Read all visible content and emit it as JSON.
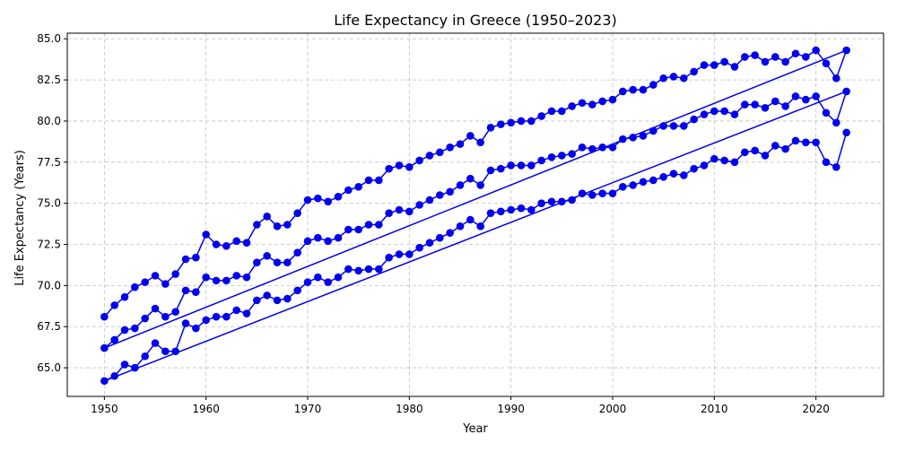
{
  "chart_data": {
    "type": "line",
    "title": "Life Expectancy in Greece (1950–2023)",
    "xlabel": "Year",
    "ylabel": "Life Expectancy (Years)",
    "xlim": [
      1946.35,
      2026.65
    ],
    "ylim": [
      63.26,
      85.34
    ],
    "x_ticks": [
      1950,
      1960,
      1970,
      1980,
      1990,
      2000,
      2010,
      2020
    ],
    "y_ticks": [
      65.0,
      67.5,
      70.0,
      72.5,
      75.0,
      77.5,
      80.0,
      82.5,
      85.0
    ],
    "grid": true,
    "grid_style": "dashed",
    "legend": "none",
    "color": "#0000ee",
    "x": [
      1950,
      1951,
      1952,
      1953,
      1954,
      1955,
      1956,
      1957,
      1958,
      1959,
      1960,
      1961,
      1962,
      1963,
      1964,
      1965,
      1966,
      1967,
      1968,
      1969,
      1970,
      1971,
      1972,
      1973,
      1974,
      1975,
      1976,
      1977,
      1978,
      1979,
      1980,
      1981,
      1982,
      1983,
      1984,
      1985,
      1986,
      1987,
      1988,
      1989,
      1990,
      1991,
      1992,
      1993,
      1994,
      1995,
      1996,
      1997,
      1998,
      1999,
      2000,
      2001,
      2002,
      2003,
      2004,
      2005,
      2006,
      2007,
      2008,
      2009,
      2010,
      2011,
      2012,
      2013,
      2014,
      2015,
      2016,
      2017,
      2018,
      2019,
      2020,
      2021,
      2022,
      2023
    ],
    "series": [
      {
        "values": [
          68.1,
          68.8,
          69.3,
          69.9,
          70.2,
          70.6,
          70.1,
          70.7,
          71.6,
          71.7,
          73.1,
          72.5,
          72.4,
          72.7,
          72.6,
          73.7,
          74.2,
          73.6,
          73.7,
          74.4,
          75.2,
          75.3,
          75.1,
          75.4,
          75.8,
          76.0,
          76.4,
          76.4,
          77.1,
          77.3,
          77.2,
          77.6,
          77.9,
          78.1,
          78.4,
          78.6,
          79.1,
          78.7,
          79.6,
          79.8,
          79.9,
          80.0,
          80.0,
          80.3,
          80.6,
          80.6,
          80.9,
          81.1,
          81.0,
          81.2,
          81.3,
          81.8,
          81.9,
          81.9,
          82.2,
          82.6,
          82.7,
          82.6,
          83.0,
          83.4,
          83.4,
          83.6,
          83.3,
          83.9,
          84.0,
          83.6,
          83.9,
          83.6,
          84.1,
          83.9,
          84.3,
          83.5,
          82.6,
          84.3
        ]
      },
      {
        "values": [
          66.2,
          66.7,
          67.3,
          67.4,
          68.0,
          68.6,
          68.1,
          68.4,
          69.7,
          69.6,
          70.5,
          70.3,
          70.3,
          70.6,
          70.5,
          71.4,
          71.8,
          71.4,
          71.4,
          72.0,
          72.7,
          72.9,
          72.7,
          72.9,
          73.4,
          73.4,
          73.7,
          73.7,
          74.4,
          74.6,
          74.5,
          74.9,
          75.2,
          75.5,
          75.7,
          76.1,
          76.5,
          76.1,
          77.0,
          77.1,
          77.3,
          77.3,
          77.3,
          77.6,
          77.8,
          77.9,
          78.0,
          78.4,
          78.3,
          78.4,
          78.4,
          78.9,
          79.0,
          79.1,
          79.4,
          79.7,
          79.7,
          79.7,
          80.1,
          80.4,
          80.6,
          80.6,
          80.4,
          81.0,
          81.0,
          80.8,
          81.2,
          80.9,
          81.5,
          81.3,
          81.5,
          80.5,
          79.9,
          81.8
        ]
      },
      {
        "values": [
          64.2,
          64.5,
          65.2,
          65.0,
          65.7,
          66.5,
          66.0,
          66.0,
          67.7,
          67.4,
          67.9,
          68.1,
          68.1,
          68.5,
          68.3,
          69.1,
          69.4,
          69.1,
          69.2,
          69.7,
          70.2,
          70.5,
          70.2,
          70.5,
          71.0,
          70.9,
          71.0,
          71.0,
          71.7,
          71.9,
          71.9,
          72.3,
          72.6,
          72.9,
          73.2,
          73.6,
          74.0,
          73.6,
          74.4,
          74.5,
          74.6,
          74.7,
          74.6,
          75.0,
          75.1,
          75.1,
          75.2,
          75.6,
          75.5,
          75.6,
          75.6,
          76.0,
          76.1,
          76.3,
          76.4,
          76.6,
          76.8,
          76.7,
          77.1,
          77.3,
          77.7,
          77.6,
          77.5,
          78.1,
          78.2,
          77.9,
          78.5,
          78.3,
          78.8,
          78.7,
          78.7,
          77.5,
          77.2,
          79.3
        ]
      }
    ]
  }
}
